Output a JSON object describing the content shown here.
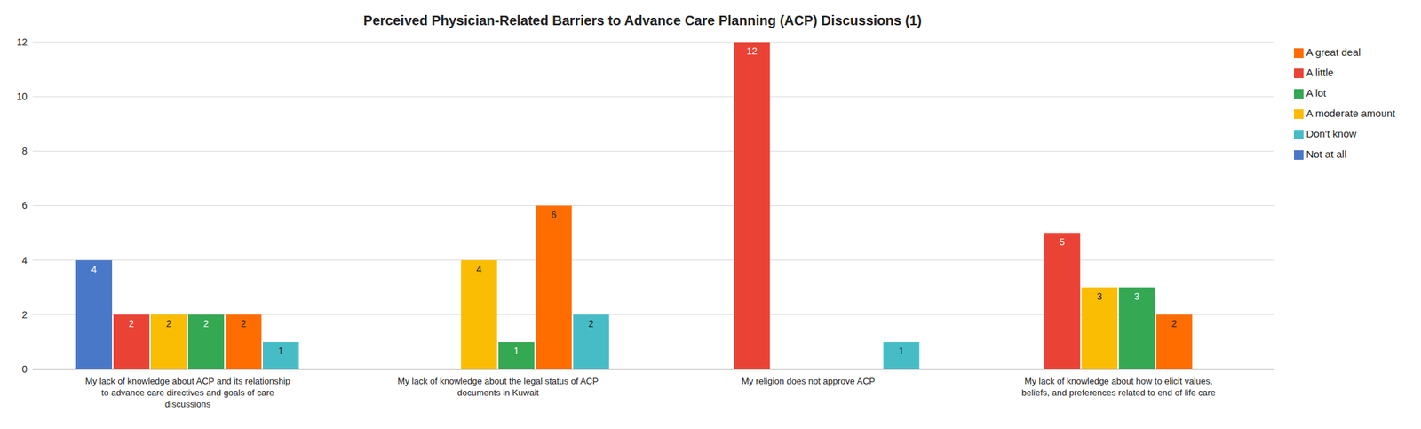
{
  "chart_data": {
    "type": "bar",
    "title": "Perceived Physician-Related Barriers to Advance Care Planning (ACP) Discussions (1)",
    "categories": [
      "My lack of knowledge about ACP and its relationship to advance care directives and goals of care discussions",
      "My lack of knowledge about the legal status of ACP documents in Kuwait",
      "My religion does not approve ACP",
      "My lack of knowledge about how to elicit values, beliefs, and preferences related to end of life care"
    ],
    "series": [
      {
        "name": "Not at all",
        "color": "#4a78c9",
        "values": [
          4,
          0,
          0,
          0
        ]
      },
      {
        "name": "A little",
        "color": "#ea4335",
        "values": [
          2,
          0,
          12,
          5
        ]
      },
      {
        "name": "A moderate amount",
        "color": "#fbbc04",
        "values": [
          2,
          4,
          0,
          3
        ]
      },
      {
        "name": "A lot",
        "color": "#34a853",
        "values": [
          2,
          1,
          0,
          3
        ]
      },
      {
        "name": "A great deal",
        "color": "#ff6d01",
        "values": [
          2,
          6,
          0,
          2
        ]
      },
      {
        "name": "Don't know",
        "color": "#46bdc6",
        "values": [
          1,
          2,
          1,
          0
        ]
      }
    ],
    "ylim": [
      0,
      12
    ],
    "yticks": [
      0,
      2,
      4,
      6,
      8,
      10,
      12
    ],
    "grid": true,
    "legend": "right",
    "data_labels": true
  }
}
